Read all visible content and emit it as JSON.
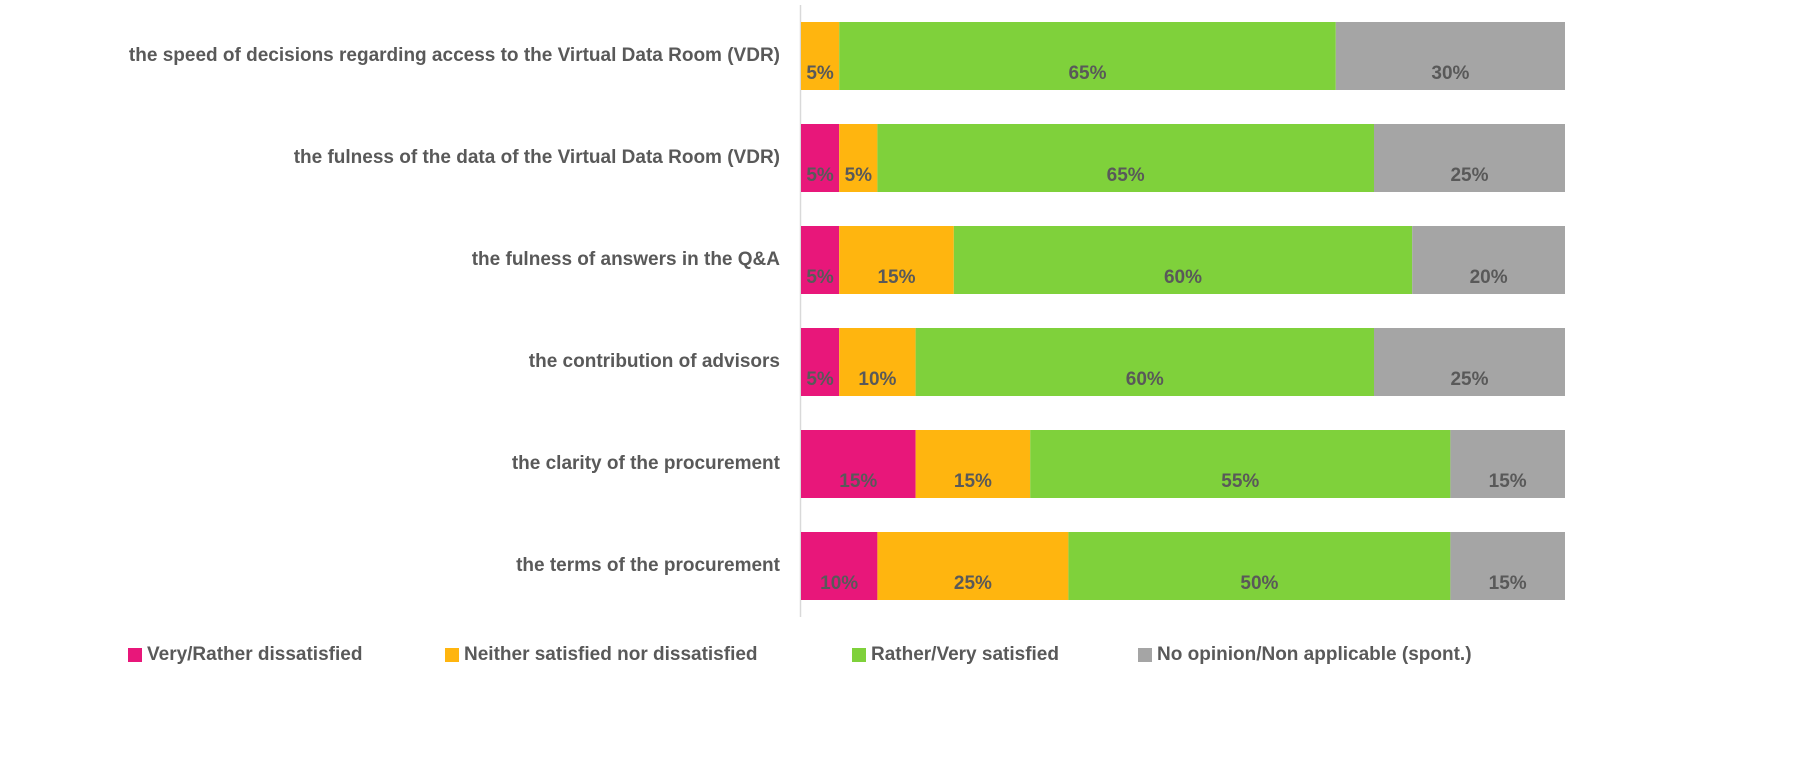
{
  "chart_data": {
    "type": "stacked_barh",
    "categories": [
      "the speed of decisions regarding access to the Virtual Data Room (VDR)",
      "the fulness of the data of the Virtual Data Room (VDR)",
      "the fulness of answers in the Q&A",
      "the contribution of advisors",
      "the clarity of the procurement",
      "the terms of the procurement"
    ],
    "series": [
      {
        "name": "Very/Rather dissatisfied",
        "color": "#e8177a",
        "values": [
          0,
          5,
          5,
          5,
          15,
          10
        ],
        "value_labels": [
          null,
          "5%",
          "5%",
          "5%",
          "15%",
          "10%"
        ]
      },
      {
        "name": "Neither satisfied nor dissatisfied",
        "color": "#ffb50f",
        "values": [
          5,
          5,
          15,
          10,
          15,
          25
        ],
        "value_labels": [
          "5%",
          "5%",
          "15%",
          "10%",
          "15%",
          "25%"
        ]
      },
      {
        "name": "Rather/Very satisfied",
        "color": "#7fd13b",
        "values": [
          65,
          65,
          60,
          60,
          55,
          50
        ],
        "value_labels": [
          "65%",
          "65%",
          "60%",
          "60%",
          "55%",
          "50%"
        ]
      },
      {
        "name": "No opinion/Non applicable (spont.)",
        "color": "#a5a5a5",
        "values": [
          30,
          25,
          20,
          25,
          15,
          15
        ],
        "value_labels": [
          "30%",
          "25%",
          "20%",
          "25%",
          "15%",
          "15%"
        ]
      }
    ],
    "legend": "bottom"
  }
}
